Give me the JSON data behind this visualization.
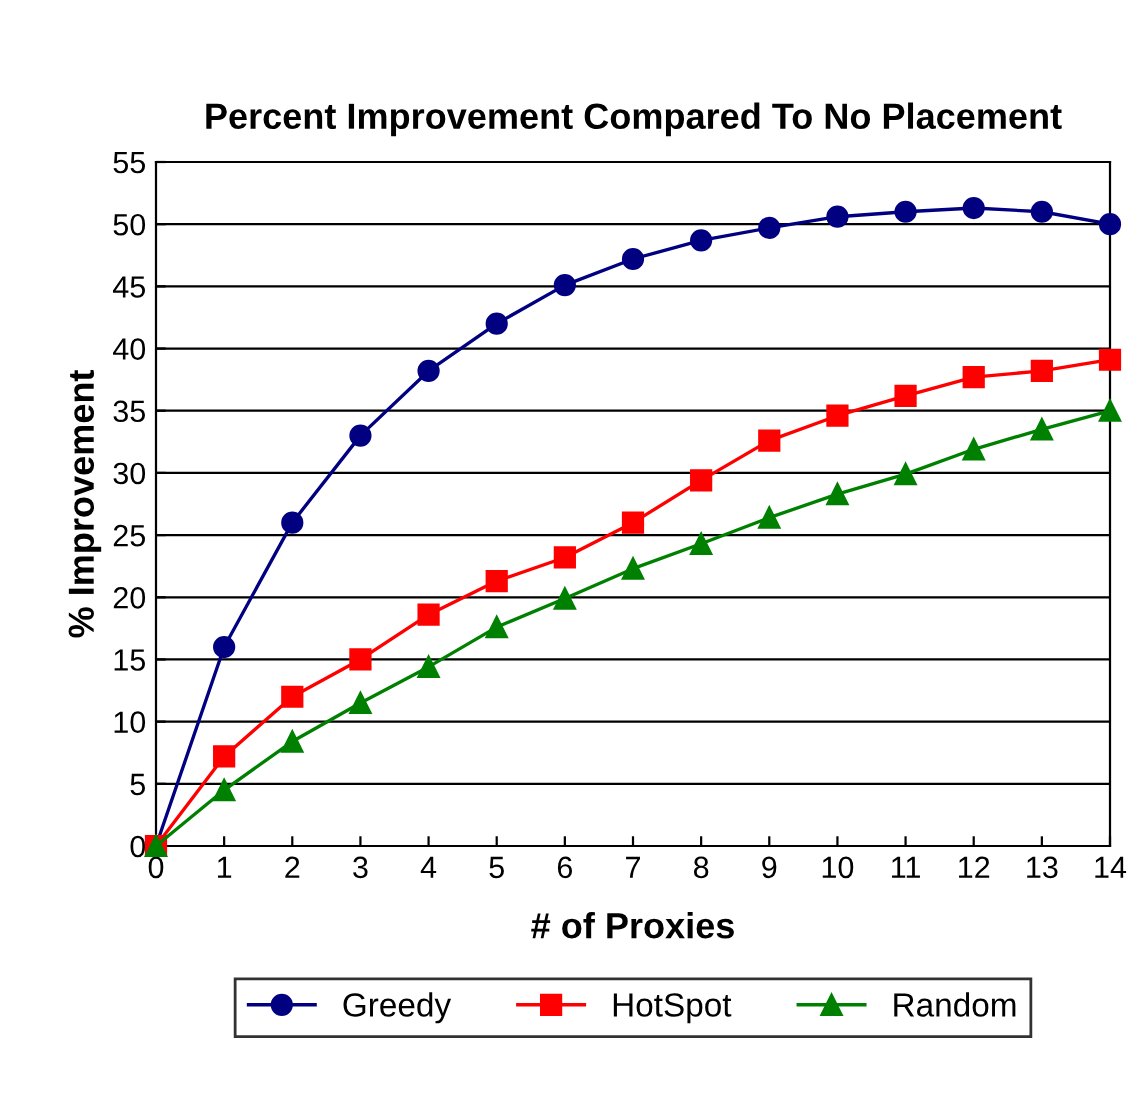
{
  "chart_data": {
    "type": "line",
    "title": "Percent Improvement Compared To No Placement",
    "xlabel": "# of Proxies",
    "ylabel": "% Improvement",
    "x": [
      0,
      1,
      2,
      3,
      4,
      5,
      6,
      7,
      8,
      9,
      10,
      11,
      12,
      13,
      14
    ],
    "series": [
      {
        "name": "Greedy",
        "color": "#000080",
        "marker": "circle",
        "values": [
          0,
          16,
          26,
          33,
          38.2,
          42,
          45.1,
          47.2,
          48.7,
          49.7,
          50.6,
          51,
          51.3,
          51,
          50
        ]
      },
      {
        "name": "HotSpot",
        "color": "#ff0000",
        "marker": "square",
        "values": [
          0,
          7.2,
          12,
          15,
          18.6,
          21.3,
          23.2,
          26,
          29.4,
          32.6,
          34.6,
          36.2,
          37.7,
          38.2,
          39.1
        ]
      },
      {
        "name": "Random",
        "color": "#008000",
        "marker": "triangle",
        "values": [
          0,
          4.5,
          8.4,
          11.5,
          14.4,
          17.6,
          19.9,
          22.3,
          24.3,
          26.4,
          28.3,
          29.9,
          31.9,
          33.5,
          35
        ]
      }
    ],
    "xlim": [
      0,
      14
    ],
    "xticks": [
      0,
      1,
      2,
      3,
      4,
      5,
      6,
      7,
      8,
      9,
      10,
      11,
      12,
      13,
      14
    ],
    "ylim": [
      0,
      55
    ],
    "yticks": [
      0,
      5,
      10,
      15,
      20,
      25,
      30,
      35,
      40,
      45,
      50,
      55
    ],
    "grid": "y",
    "legend": "bottom",
    "line_style": "solid"
  }
}
